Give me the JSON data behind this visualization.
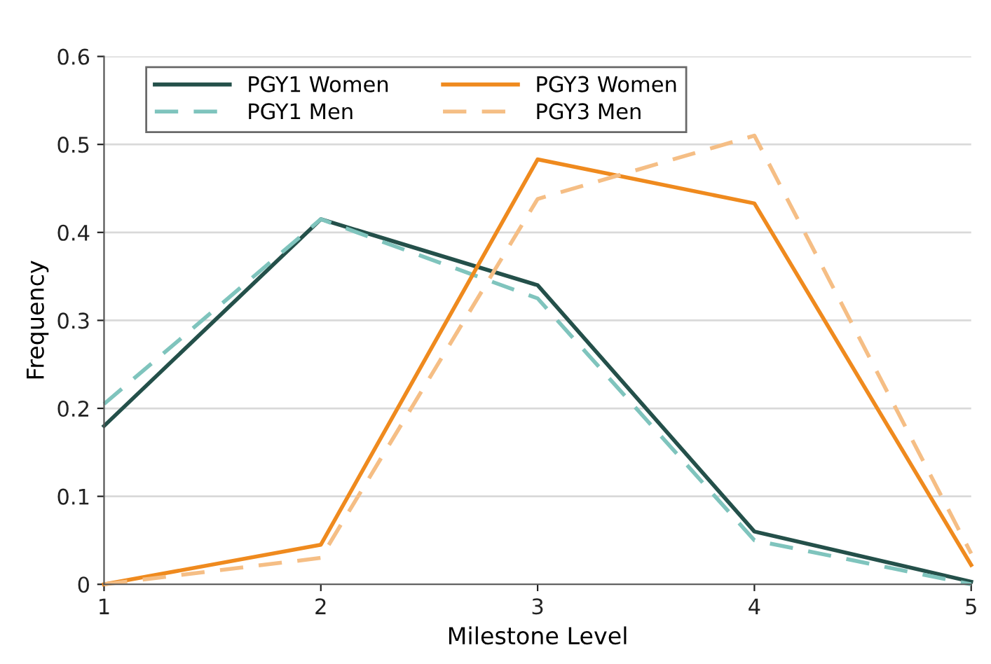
{
  "chart_data": {
    "type": "line",
    "xlabel": "Milestone Level",
    "ylabel": "Frequency",
    "x": [
      1,
      2,
      3,
      4,
      5
    ],
    "xlim": [
      1,
      5
    ],
    "xticks": [
      1,
      2,
      3,
      4,
      5
    ],
    "ylim": [
      0,
      0.6
    ],
    "yticks": [
      {
        "value": 0,
        "label": "0"
      },
      0.1,
      0.2,
      0.3,
      0.4,
      0.5,
      0.6
    ],
    "grid": "y",
    "legend": "top",
    "marker": "none",
    "series": [
      {
        "name": "PGY1 Women",
        "color": "#24504a",
        "line_style": "solid",
        "values": [
          0.18,
          0.415,
          0.34,
          0.06,
          0.003
        ]
      },
      {
        "name": "PGY1 Men",
        "color": "#7fc4bd",
        "line_style": "dashed",
        "values": [
          0.205,
          0.415,
          0.325,
          0.05,
          0.0
        ]
      },
      {
        "name": "PGY3 Women",
        "color": "#ef8a1e",
        "line_style": "solid",
        "values": [
          0.0,
          0.045,
          0.483,
          0.433,
          0.022
        ]
      },
      {
        "name": "PGY3 Men",
        "color": "#f5be85",
        "line_style": "dashed",
        "values": [
          0.0,
          0.03,
          0.438,
          0.51,
          0.035
        ]
      }
    ]
  }
}
